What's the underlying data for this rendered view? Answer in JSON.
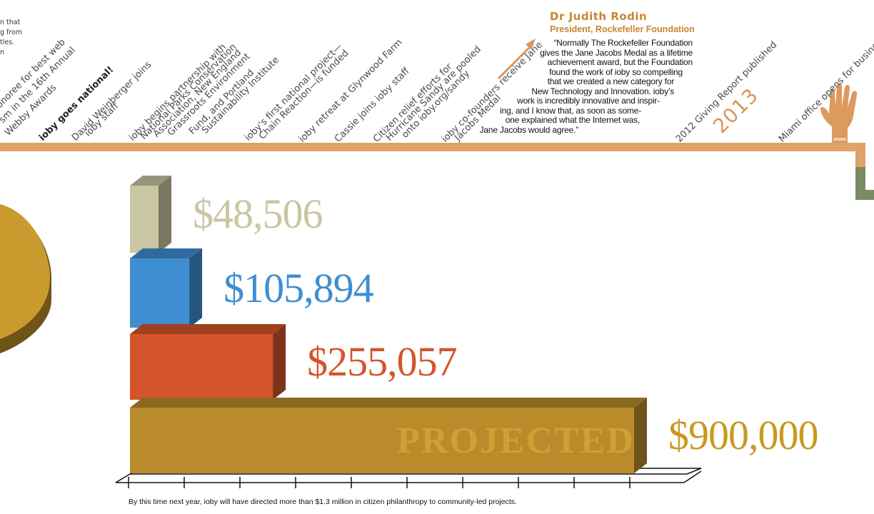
{
  "timeline": {
    "year": "2013",
    "events": [
      "n that",
      "g from",
      "tles.",
      "n",
      "honoree for best web",
      "sm in the 16th Annual",
      "Webby Awards",
      "ioby goes national!",
      "David Weinberger joins",
      "ioby staff",
      "ioby begins partnership with",
      "National Parks Conservation",
      "Association, New England",
      "Grassroots Environment",
      "Fund, and Portland",
      "Sustainability Institute",
      "ioby's first national project—",
      "Chain Reaction—is funded",
      "ioby retreat at Glynwood Farm",
      "Cassie joins ioby staff",
      "Citizen relief efforts for",
      "Hurricane Sandy are pooled",
      "onto ioby.org/sandy",
      "ioby co-founders receive Jane",
      "Jacobs Medal",
      "2012 Giving Report published",
      "Miami office opens for business"
    ]
  },
  "quote": {
    "name": "Dr Judith Rodin",
    "title": "President, Rockefeller Foundation",
    "lines": [
      "“Normally The Rockefeller Foundation",
      "gives the Jane Jacobs Medal as a lifetime",
      "achievement award, but the Foundation",
      "found the work of ioby so compelling",
      "that we created a new category for",
      "New Technology and Innovation. ioby’s",
      "work is incredibly innovative and inspir-",
      "ing, and I know that, as soon as some-",
      "one explained what the Internet was,",
      "Jane Jacobs would agree.”"
    ]
  },
  "chart_data": {
    "type": "bar",
    "orientation": "horizontal",
    "categories": [
      "",
      "",
      "",
      ""
    ],
    "values": [
      48506,
      105894,
      255057,
      900000
    ],
    "value_labels": [
      "$48,506",
      "$105,894",
      "$255,057",
      "$900,000"
    ],
    "bar_annotations": [
      "",
      "",
      "",
      "PROJECTED"
    ],
    "colors": [
      "#c9c6a2",
      "#3f8ed2",
      "#d4552c",
      "#b98b2b"
    ],
    "label_colors": [
      "#c9c6a2",
      "#3f8ed2",
      "#d4552c",
      "#c9991f"
    ],
    "title": "",
    "xlabel": "",
    "ylabel": ""
  },
  "footnote": "By this time next year, ioby will have directed more than $1.3 million in citizen philanthropy to community-led projects.",
  "colors": {
    "timeline": "#e0a266",
    "hand": "#dc9a5e",
    "pie": "#c99a2e",
    "pie_side": "#6e5418",
    "green": "#7a8b63"
  }
}
